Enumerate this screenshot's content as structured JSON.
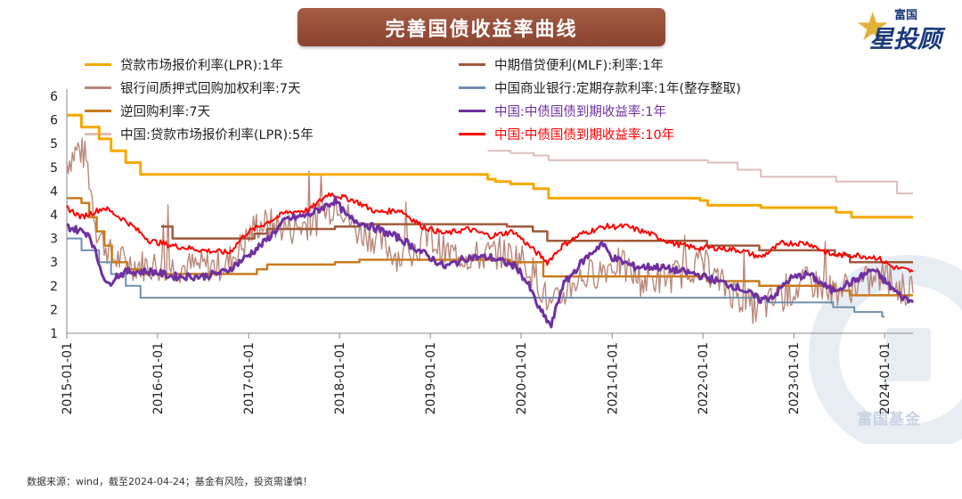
{
  "title": "完善国债收益率曲线",
  "logo": {
    "small": "富国",
    "big": "星投顾",
    "icon": "star-icon"
  },
  "watermark": {
    "text": "富国基金",
    "icon": "fuguo-ring-logo"
  },
  "source_note": "数据来源：wind，截至2024-04-24；基金有风险，投资需谨慎！",
  "chart_data": {
    "type": "line",
    "x_range": [
      "2015-01-01",
      "2024-04-24"
    ],
    "x_ticks": [
      "2015-01-01",
      "2016-01-01",
      "2017-01-01",
      "2018-01-01",
      "2019-01-01",
      "2020-01-01",
      "2021-01-01",
      "2022-01-01",
      "2023-01-01",
      "2024-01-01"
    ],
    "y_ticks": [
      "1",
      "2",
      "2",
      "3",
      "3",
      "4",
      "4",
      "5",
      "5",
      "6",
      "6"
    ],
    "ylim": [
      1.0,
      6.0
    ],
    "grid": false,
    "legend_placement": "top",
    "series": [
      {
        "name": "贷款市场报价利率(LPR):1年",
        "color": "#f5a800",
        "width": 3,
        "style": "step",
        "points": [
          [
            "2015-01-01",
            5.6
          ],
          [
            "2015-03-01",
            5.35
          ],
          [
            "2015-05-11",
            5.1
          ],
          [
            "2015-06-28",
            4.85
          ],
          [
            "2015-08-26",
            4.6
          ],
          [
            "2015-10-24",
            4.35
          ],
          [
            "2019-08-20",
            4.25
          ],
          [
            "2019-09-20",
            4.2
          ],
          [
            "2019-11-20",
            4.15
          ],
          [
            "2020-02-20",
            4.05
          ],
          [
            "2020-04-20",
            3.85
          ],
          [
            "2021-12-20",
            3.8
          ],
          [
            "2022-01-20",
            3.7
          ],
          [
            "2022-08-22",
            3.65
          ],
          [
            "2023-06-20",
            3.55
          ],
          [
            "2023-08-21",
            3.45
          ],
          [
            "2024-04-24",
            3.45
          ]
        ]
      },
      {
        "name": "中期借贷便利(MLF):利率:1年",
        "color": "#9e5a3c",
        "width": 2.5,
        "style": "step",
        "points": [
          [
            "2016-01-15",
            3.25
          ],
          [
            "2016-03-01",
            3.0
          ],
          [
            "2017-01-24",
            3.1
          ],
          [
            "2017-03-16",
            3.2
          ],
          [
            "2017-12-14",
            3.25
          ],
          [
            "2018-03-20",
            3.3
          ],
          [
            "2019-11-05",
            3.25
          ],
          [
            "2020-02-17",
            3.15
          ],
          [
            "2020-04-15",
            2.95
          ],
          [
            "2022-01-17",
            2.85
          ],
          [
            "2022-08-15",
            2.75
          ],
          [
            "2023-06-15",
            2.65
          ],
          [
            "2023-08-15",
            2.5
          ],
          [
            "2024-04-24",
            2.5
          ]
        ]
      },
      {
        "name": "银行间质押式回购加权利率:7天",
        "color": "#b8887a",
        "width": 1.4,
        "style": "noisy",
        "points": [
          [
            "2015-01-01",
            4.6
          ],
          [
            "2015-02-15",
            4.9
          ],
          [
            "2015-03-20",
            4.7
          ],
          [
            "2015-05-01",
            3.2
          ],
          [
            "2015-07-01",
            2.6
          ],
          [
            "2015-10-01",
            2.45
          ],
          [
            "2016-03-01",
            2.4
          ],
          [
            "2016-07-01",
            2.4
          ],
          [
            "2016-10-01",
            2.45
          ],
          [
            "2016-12-15",
            2.9
          ],
          [
            "2017-02-01",
            3.3
          ],
          [
            "2017-04-01",
            3.3
          ],
          [
            "2017-07-01",
            3.2
          ],
          [
            "2017-10-01",
            3.4
          ],
          [
            "2017-12-30",
            3.8
          ],
          [
            "2018-03-01",
            3.2
          ],
          [
            "2018-06-01",
            3.0
          ],
          [
            "2018-09-01",
            2.6
          ],
          [
            "2018-12-30",
            3.0
          ],
          [
            "2019-03-01",
            2.7
          ],
          [
            "2019-06-30",
            2.6
          ],
          [
            "2019-10-01",
            2.7
          ],
          [
            "2019-12-30",
            2.6
          ],
          [
            "2020-03-01",
            2.2
          ],
          [
            "2020-05-01",
            1.5
          ],
          [
            "2020-08-01",
            2.1
          ],
          [
            "2020-11-01",
            2.3
          ],
          [
            "2021-01-20",
            2.5
          ],
          [
            "2021-05-01",
            2.1
          ],
          [
            "2021-09-01",
            2.2
          ],
          [
            "2021-12-30",
            2.5
          ],
          [
            "2022-03-01",
            2.1
          ],
          [
            "2022-08-01",
            1.5
          ],
          [
            "2022-12-01",
            1.8
          ],
          [
            "2023-03-01",
            2.1
          ],
          [
            "2023-06-01",
            1.9
          ],
          [
            "2023-09-01",
            2.0
          ],
          [
            "2023-12-30",
            2.2
          ],
          [
            "2024-03-01",
            1.95
          ],
          [
            "2024-04-24",
            1.85
          ]
        ]
      },
      {
        "name": "中国商业银行:定期存款利率:1年(整存整取)",
        "color": "#6f8fac",
        "width": 2,
        "style": "step",
        "points": [
          [
            "2015-01-01",
            3.0
          ],
          [
            "2015-03-01",
            2.75
          ],
          [
            "2015-05-11",
            2.5
          ],
          [
            "2015-06-28",
            2.25
          ],
          [
            "2015-08-26",
            2.0
          ],
          [
            "2015-10-24",
            1.75
          ],
          [
            "2022-09-15",
            1.65
          ],
          [
            "2023-06-08",
            1.55
          ],
          [
            "2023-09-01",
            1.45
          ],
          [
            "2023-12-22",
            1.35
          ],
          [
            "2024-01-01",
            1.35
          ]
        ]
      },
      {
        "name": "逆回购利率:7天",
        "color": "#c97b1e",
        "width": 2.5,
        "style": "step",
        "points": [
          [
            "2015-01-01",
            3.85
          ],
          [
            "2015-02-01",
            3.85
          ],
          [
            "2015-03-01",
            3.75
          ],
          [
            "2015-04-01",
            3.45
          ],
          [
            "2015-05-01",
            3.15
          ],
          [
            "2015-06-01",
            2.85
          ],
          [
            "2015-07-01",
            2.5
          ],
          [
            "2015-09-01",
            2.35
          ],
          [
            "2015-10-27",
            2.25
          ],
          [
            "2017-02-03",
            2.35
          ],
          [
            "2017-03-16",
            2.45
          ],
          [
            "2017-12-14",
            2.5
          ],
          [
            "2018-03-22",
            2.55
          ],
          [
            "2019-11-18",
            2.5
          ],
          [
            "2020-03-30",
            2.2
          ],
          [
            "2022-01-17",
            2.1
          ],
          [
            "2022-08-15",
            2.0
          ],
          [
            "2023-06-13",
            1.9
          ],
          [
            "2023-08-15",
            1.8
          ],
          [
            "2024-04-24",
            1.8
          ]
        ]
      },
      {
        "name": "中国:中债国债到期收益率:1年",
        "color": "#7030a0",
        "width": 3,
        "style": "noisy",
        "points": [
          [
            "2015-01-01",
            3.25
          ],
          [
            "2015-04-01",
            3.1
          ],
          [
            "2015-05-15",
            2.4
          ],
          [
            "2015-06-15",
            2.0
          ],
          [
            "2015-07-15",
            2.2
          ],
          [
            "2015-09-01",
            2.3
          ],
          [
            "2015-12-15",
            2.3
          ],
          [
            "2016-03-01",
            2.2
          ],
          [
            "2016-07-01",
            2.2
          ],
          [
            "2016-10-01",
            2.3
          ],
          [
            "2016-12-20",
            2.6
          ],
          [
            "2017-03-01",
            2.9
          ],
          [
            "2017-06-01",
            3.4
          ],
          [
            "2017-09-01",
            3.5
          ],
          [
            "2017-12-15",
            3.8
          ],
          [
            "2018-02-01",
            3.45
          ],
          [
            "2018-06-01",
            3.2
          ],
          [
            "2018-09-01",
            3.0
          ],
          [
            "2018-12-01",
            2.7
          ],
          [
            "2019-03-01",
            2.4
          ],
          [
            "2019-06-01",
            2.6
          ],
          [
            "2019-09-01",
            2.6
          ],
          [
            "2019-12-15",
            2.4
          ],
          [
            "2020-02-01",
            2.0
          ],
          [
            "2020-03-15",
            1.5
          ],
          [
            "2020-05-01",
            1.15
          ],
          [
            "2020-06-15",
            2.0
          ],
          [
            "2020-09-01",
            2.5
          ],
          [
            "2020-11-20",
            2.9
          ],
          [
            "2021-01-01",
            2.6
          ],
          [
            "2021-04-01",
            2.4
          ],
          [
            "2021-07-01",
            2.4
          ],
          [
            "2021-12-01",
            2.25
          ],
          [
            "2022-03-01",
            2.1
          ],
          [
            "2022-06-01",
            1.95
          ],
          [
            "2022-08-20",
            1.7
          ],
          [
            "2022-10-15",
            1.8
          ],
          [
            "2022-12-15",
            2.15
          ],
          [
            "2023-03-01",
            2.25
          ],
          [
            "2023-06-01",
            1.9
          ],
          [
            "2023-09-01",
            2.1
          ],
          [
            "2023-11-15",
            2.35
          ],
          [
            "2024-01-01",
            2.1
          ],
          [
            "2024-03-01",
            1.8
          ],
          [
            "2024-04-24",
            1.65
          ]
        ]
      },
      {
        "name": "中国:贷款市场报价利率(LPR):5年",
        "color": "#e0bcbc",
        "width": 2,
        "style": "step",
        "points": [
          [
            "2019-08-20",
            4.85
          ],
          [
            "2019-11-20",
            4.8
          ],
          [
            "2020-02-20",
            4.75
          ],
          [
            "2020-04-20",
            4.65
          ],
          [
            "2022-01-20",
            4.6
          ],
          [
            "2022-05-20",
            4.45
          ],
          [
            "2022-08-22",
            4.3
          ],
          [
            "2023-06-20",
            4.2
          ],
          [
            "2024-02-20",
            3.95
          ],
          [
            "2024-04-24",
            3.95
          ]
        ]
      },
      {
        "name": "中国:中债国债到期收益率:10年",
        "color": "#ff0000",
        "width": 2,
        "style": "noisy",
        "points": [
          [
            "2015-01-01",
            3.65
          ],
          [
            "2015-03-01",
            3.45
          ],
          [
            "2015-06-01",
            3.65
          ],
          [
            "2015-09-01",
            3.35
          ],
          [
            "2015-12-01",
            2.95
          ],
          [
            "2016-03-01",
            2.85
          ],
          [
            "2016-07-01",
            2.75
          ],
          [
            "2016-10-15",
            2.7
          ],
          [
            "2016-12-20",
            3.1
          ],
          [
            "2017-03-01",
            3.3
          ],
          [
            "2017-06-01",
            3.55
          ],
          [
            "2017-09-01",
            3.6
          ],
          [
            "2017-11-20",
            3.95
          ],
          [
            "2018-03-01",
            3.8
          ],
          [
            "2018-06-01",
            3.55
          ],
          [
            "2018-09-01",
            3.6
          ],
          [
            "2018-12-01",
            3.25
          ],
          [
            "2019-03-01",
            3.1
          ],
          [
            "2019-06-01",
            3.2
          ],
          [
            "2019-09-01",
            3.05
          ],
          [
            "2019-12-01",
            3.15
          ],
          [
            "2020-02-01",
            2.85
          ],
          [
            "2020-04-15",
            2.5
          ],
          [
            "2020-06-15",
            2.85
          ],
          [
            "2020-09-01",
            3.1
          ],
          [
            "2020-12-01",
            3.25
          ],
          [
            "2021-03-01",
            3.25
          ],
          [
            "2021-06-01",
            3.1
          ],
          [
            "2021-09-01",
            2.9
          ],
          [
            "2021-12-01",
            2.8
          ],
          [
            "2022-03-01",
            2.8
          ],
          [
            "2022-06-01",
            2.75
          ],
          [
            "2022-08-20",
            2.6
          ],
          [
            "2022-11-15",
            2.9
          ],
          [
            "2023-03-01",
            2.9
          ],
          [
            "2023-06-01",
            2.65
          ],
          [
            "2023-09-01",
            2.65
          ],
          [
            "2023-12-01",
            2.6
          ],
          [
            "2024-02-01",
            2.4
          ],
          [
            "2024-04-24",
            2.3
          ]
        ]
      }
    ]
  }
}
